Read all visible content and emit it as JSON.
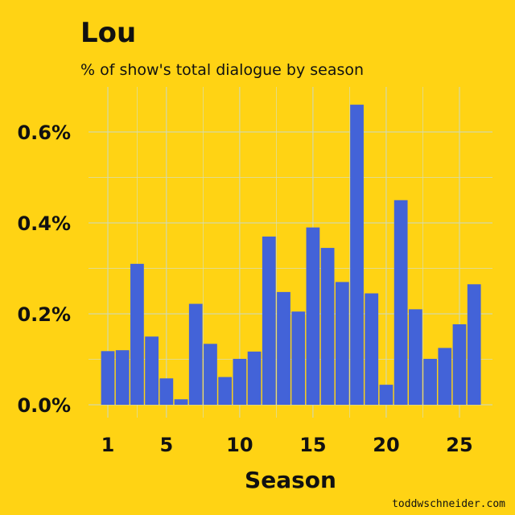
{
  "chart_data": {
    "type": "bar",
    "title": "Lou",
    "subtitle": "% of show's total dialogue by season",
    "xlabel": "Season",
    "ylabel": "",
    "categories": [
      1,
      2,
      3,
      4,
      5,
      6,
      7,
      8,
      9,
      10,
      11,
      12,
      13,
      14,
      15,
      16,
      17,
      18,
      19,
      20,
      21,
      22,
      23,
      24,
      25,
      26
    ],
    "values": [
      0.118,
      0.12,
      0.31,
      0.15,
      0.058,
      0.012,
      0.222,
      0.134,
      0.061,
      0.101,
      0.117,
      0.37,
      0.248,
      0.205,
      0.39,
      0.345,
      0.27,
      0.66,
      0.245,
      0.044,
      0.45,
      0.21,
      0.101,
      0.125,
      0.177,
      0.265
    ],
    "ylim": [
      0,
      0.7
    ],
    "xlim": [
      0.4,
      26.6
    ],
    "yticks": [
      0.0,
      0.2,
      0.4,
      0.6
    ],
    "ytick_labels": [
      "0.0%",
      "0.2%",
      "0.4%",
      "0.6%"
    ],
    "xticks": [
      1,
      5,
      10,
      15,
      20,
      25
    ],
    "xtick_labels": [
      "1",
      "5",
      "10",
      "15",
      "20",
      "25"
    ],
    "grid": true,
    "legend": "none",
    "bar_color": "#4363D8",
    "background_color": "#FFD314",
    "grid_color": "#C9D8C8"
  },
  "credit": "toddwschneider.com"
}
